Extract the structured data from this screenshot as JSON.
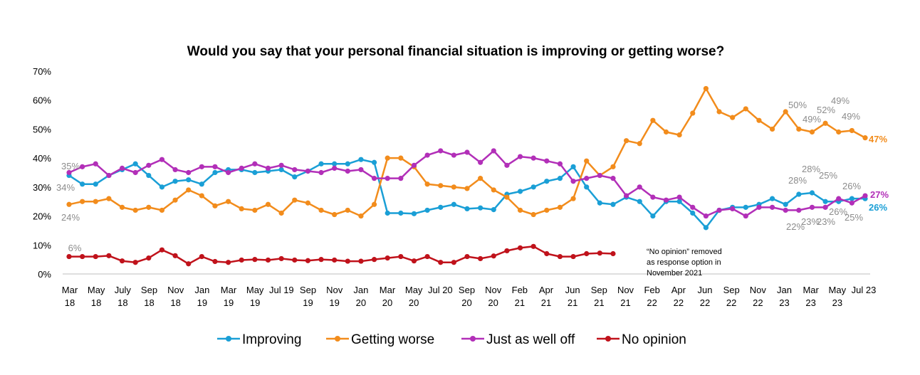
{
  "chart_data": {
    "type": "line",
    "title": "Would you say that your personal financial situation is improving or getting worse?",
    "xlabel": "",
    "ylabel": "",
    "ylim": [
      0,
      70
    ],
    "yticks": [
      "0%",
      "10%",
      "20%",
      "30%",
      "40%",
      "50%",
      "60%",
      "70%"
    ],
    "grid": false,
    "legend_position": "bottom",
    "x_tick_labels": [
      {
        "line1": "Mar",
        "line2": "18"
      },
      {
        "line1": "May",
        "line2": "18"
      },
      {
        "line1": "July",
        "line2": "18"
      },
      {
        "line1": "Sep",
        "line2": "18"
      },
      {
        "line1": "Nov",
        "line2": "18"
      },
      {
        "line1": "Jan",
        "line2": "19"
      },
      {
        "line1": "Mar",
        "line2": "19"
      },
      {
        "line1": "May",
        "line2": "19"
      },
      {
        "line1": "Jul 19",
        "line2": ""
      },
      {
        "line1": "Sep",
        "line2": "19"
      },
      {
        "line1": "Nov",
        "line2": "19"
      },
      {
        "line1": "Jan",
        "line2": "20"
      },
      {
        "line1": "Mar",
        "line2": "20"
      },
      {
        "line1": "May",
        "line2": "20"
      },
      {
        "line1": "Jul 20",
        "line2": ""
      },
      {
        "line1": "Sep",
        "line2": "20"
      },
      {
        "line1": "Nov",
        "line2": "20"
      },
      {
        "line1": "Feb",
        "line2": "21"
      },
      {
        "line1": "Apr",
        "line2": "21"
      },
      {
        "line1": "Jun",
        "line2": "21"
      },
      {
        "line1": "Sep",
        "line2": "21"
      },
      {
        "line1": "Nov",
        "line2": "21"
      },
      {
        "line1": "Feb",
        "line2": "22"
      },
      {
        "line1": "Apr",
        "line2": "22"
      },
      {
        "line1": "Jun",
        "line2": "22"
      },
      {
        "line1": "Sep",
        "line2": "22"
      },
      {
        "line1": "Nov",
        "line2": "22"
      },
      {
        "line1": "Jan",
        "line2": "23"
      },
      {
        "line1": "Mar",
        "line2": "23"
      },
      {
        "line1": "May",
        "line2": "23"
      },
      {
        "line1": "Jul 23",
        "line2": ""
      }
    ],
    "series": [
      {
        "name": "Improving",
        "color": "#1a9fd6",
        "values": [
          34,
          31,
          31,
          34,
          36,
          38,
          34,
          30,
          32,
          32.5,
          31,
          35,
          36,
          36,
          35,
          35.5,
          36,
          33.5,
          35.5,
          38,
          38,
          38,
          39.5,
          38.5,
          21,
          21,
          20.8,
          22,
          23,
          24,
          22.5,
          22.8,
          22.2,
          27.5,
          28.5,
          30,
          32,
          33,
          37,
          30,
          24.5,
          24,
          26.5,
          25,
          20,
          25,
          25,
          21,
          16,
          22,
          23,
          23,
          24,
          26,
          24,
          27.5,
          28,
          25,
          25,
          26,
          26
        ]
      },
      {
        "name": "Getting worse",
        "color": "#f28c1c",
        "values": [
          24,
          25,
          25,
          26,
          23,
          22,
          23,
          22,
          25.5,
          29,
          27,
          23.5,
          25,
          22.5,
          22,
          24,
          21,
          25.5,
          24.5,
          22,
          20.5,
          22,
          20,
          24,
          40,
          40,
          37,
          31,
          30.5,
          30,
          29.5,
          33,
          29,
          26.5,
          22,
          20.5,
          22,
          23,
          26,
          39,
          34,
          37,
          46,
          45,
          53,
          49,
          48,
          55.5,
          64,
          56,
          54,
          57,
          53,
          50,
          56,
          50,
          49,
          52,
          49,
          49.5,
          47
        ]
      },
      {
        "name": "Just as well off",
        "color": "#b22fb8",
        "values": [
          35,
          37,
          38,
          34,
          36.5,
          35,
          37.5,
          39.5,
          36,
          35,
          37,
          37,
          35,
          36.5,
          38,
          36.5,
          37.5,
          36,
          35.5,
          35,
          36.5,
          35.5,
          36,
          33,
          33,
          33,
          37.5,
          41,
          42.5,
          41,
          42,
          38.5,
          42.5,
          37.5,
          40.5,
          40,
          39,
          38,
          32,
          33,
          34,
          33,
          27,
          30,
          26.5,
          25.5,
          26.5,
          23,
          20,
          22,
          22.5,
          20,
          23,
          23,
          22,
          22,
          23,
          23,
          26,
          24.5,
          27
        ]
      },
      {
        "name": "No opinion",
        "color": "#c0121b",
        "values": [
          6,
          6,
          6,
          6.3,
          4.5,
          4,
          5.5,
          8.3,
          6.3,
          3.5,
          6,
          4.3,
          4,
          4.8,
          5,
          4.8,
          5.3,
          4.8,
          4.6,
          5,
          4.8,
          4.4,
          4.4,
          5,
          5.5,
          6,
          4.5,
          6,
          4,
          4,
          6,
          5.3,
          6.2,
          8,
          9,
          9.5,
          7,
          6,
          6,
          7,
          7.2,
          7
        ]
      }
    ],
    "annotations": {
      "start_improving": "34%",
      "start_worse": "24%",
      "start_well_off": "35%",
      "start_no_opinion": "6%",
      "worse_recent": [
        "50%",
        "49%",
        "52%",
        "49%",
        "49%"
      ],
      "improving_recent": [
        "28%",
        "28%",
        "25%",
        "26%"
      ],
      "well_off_recent": [
        "22%",
        "23%",
        "23%",
        "26%",
        "25%"
      ],
      "end_worse": "47%",
      "end_well_off": "27%",
      "end_improving": "26%"
    },
    "note_lines": [
      "“No opinion” removed",
      "as response option in",
      "November 2021"
    ]
  }
}
